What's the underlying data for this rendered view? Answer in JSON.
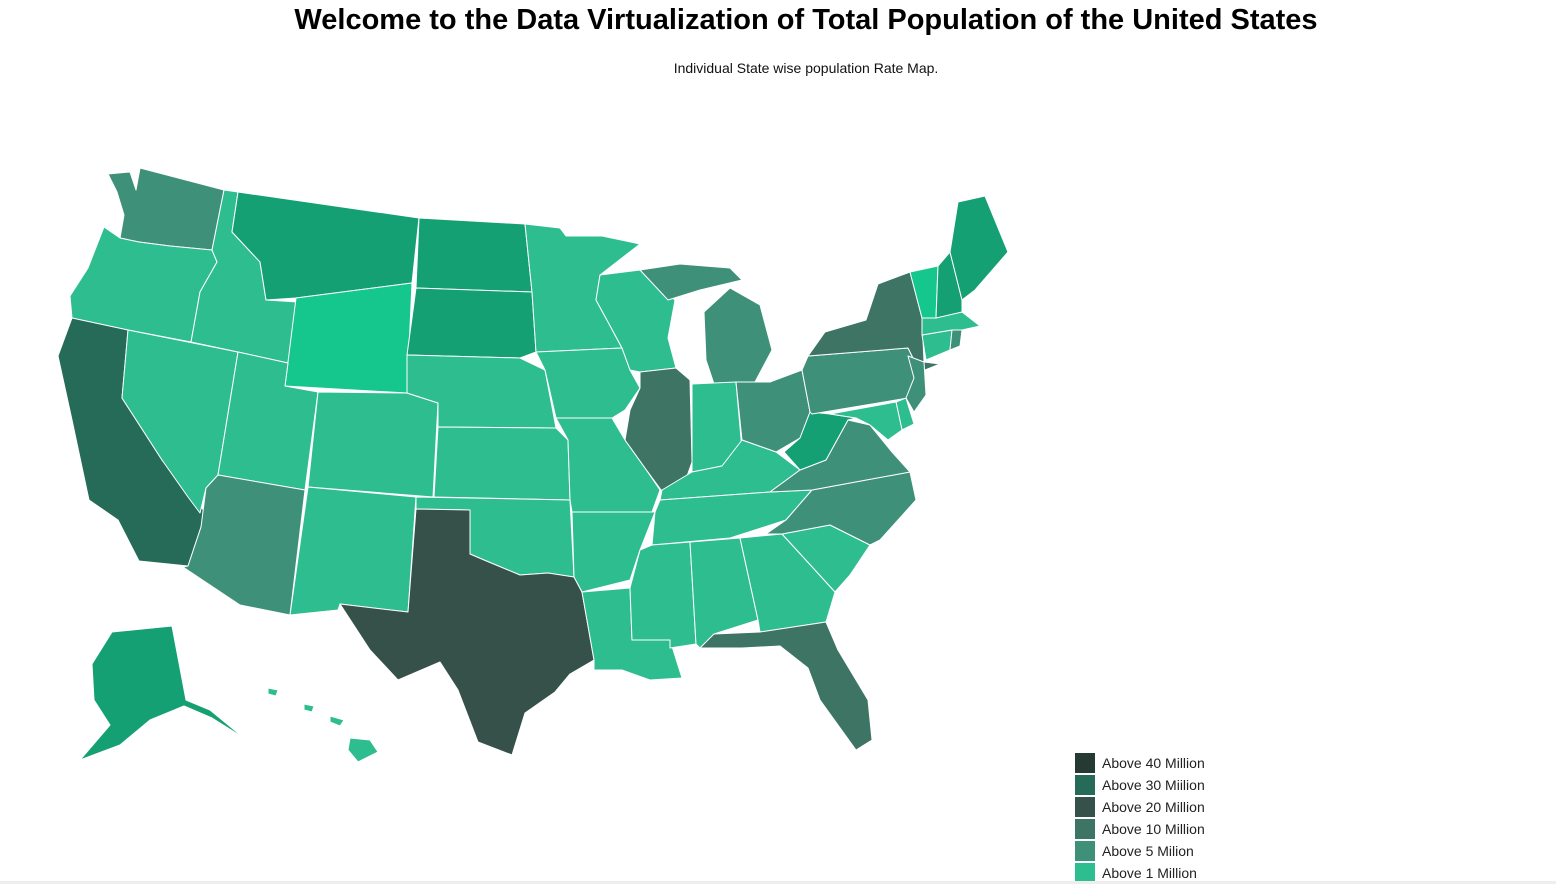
{
  "header": {
    "title": "Welcome to the Data Virtualization of Total Population of the United States",
    "subtitle": "Individual State wise population Rate Map."
  },
  "colors": {
    "above_40": "#253a32",
    "above_30": "#256b58",
    "above_20": "#35514a",
    "above_10": "#3d7464",
    "above_5": "#3f9079",
    "above_1": "#2ebd8f",
    "under_1": "#14a073",
    "lowest": "#18c18f",
    "bright": "#15c68d"
  },
  "legend": {
    "items": [
      {
        "label": "Above 40 Million",
        "color": "#253a32"
      },
      {
        "label": "Above 30 Miilion",
        "color": "#256b58"
      },
      {
        "label": "Above 20 Million",
        "color": "#35514a"
      },
      {
        "label": "Above 10 Million",
        "color": "#3d7464"
      },
      {
        "label": "Above 5 Milion",
        "color": "#3f9079"
      },
      {
        "label": "Above 1 Million",
        "color": "#2ebd8f"
      }
    ]
  },
  "states": [
    {
      "name": "Washington",
      "tier": "above_5"
    },
    {
      "name": "Oregon",
      "tier": "above_1"
    },
    {
      "name": "California",
      "tier": "above_30"
    },
    {
      "name": "Nevada",
      "tier": "above_1"
    },
    {
      "name": "Idaho",
      "tier": "above_1"
    },
    {
      "name": "Montana",
      "tier": "under_1"
    },
    {
      "name": "Wyoming",
      "tier": "bright"
    },
    {
      "name": "Utah",
      "tier": "above_1"
    },
    {
      "name": "Arizona",
      "tier": "above_5"
    },
    {
      "name": "Colorado",
      "tier": "above_1"
    },
    {
      "name": "New Mexico",
      "tier": "above_1"
    },
    {
      "name": "North Dakota",
      "tier": "under_1"
    },
    {
      "name": "South Dakota",
      "tier": "under_1"
    },
    {
      "name": "Nebraska",
      "tier": "above_1"
    },
    {
      "name": "Kansas",
      "tier": "above_1"
    },
    {
      "name": "Oklahoma",
      "tier": "above_1"
    },
    {
      "name": "Texas",
      "tier": "above_20"
    },
    {
      "name": "Minnesota",
      "tier": "above_1"
    },
    {
      "name": "Iowa",
      "tier": "above_1"
    },
    {
      "name": "Missouri",
      "tier": "above_1"
    },
    {
      "name": "Arkansas",
      "tier": "above_1"
    },
    {
      "name": "Louisiana",
      "tier": "above_1"
    },
    {
      "name": "Wisconsin",
      "tier": "above_1"
    },
    {
      "name": "Illinois",
      "tier": "above_10"
    },
    {
      "name": "Michigan",
      "tier": "above_5"
    },
    {
      "name": "Indiana",
      "tier": "above_1"
    },
    {
      "name": "Ohio",
      "tier": "above_5"
    },
    {
      "name": "Kentucky",
      "tier": "above_1"
    },
    {
      "name": "Tennessee",
      "tier": "above_1"
    },
    {
      "name": "Mississippi",
      "tier": "above_1"
    },
    {
      "name": "Alabama",
      "tier": "above_1"
    },
    {
      "name": "Georgia",
      "tier": "above_1"
    },
    {
      "name": "Florida",
      "tier": "above_10"
    },
    {
      "name": "South Carolina",
      "tier": "above_1"
    },
    {
      "name": "North Carolina",
      "tier": "above_5"
    },
    {
      "name": "Virginia",
      "tier": "above_5"
    },
    {
      "name": "West Virginia",
      "tier": "under_1"
    },
    {
      "name": "Pennsylvania",
      "tier": "above_5"
    },
    {
      "name": "New York",
      "tier": "above_10"
    },
    {
      "name": "New Jersey",
      "tier": "above_5"
    },
    {
      "name": "Delaware",
      "tier": "above_1"
    },
    {
      "name": "Maryland",
      "tier": "above_1"
    },
    {
      "name": "Connecticut",
      "tier": "above_1"
    },
    {
      "name": "Rhode Island",
      "tier": "above_5"
    },
    {
      "name": "Massachusetts",
      "tier": "above_1"
    },
    {
      "name": "Vermont",
      "tier": "bright"
    },
    {
      "name": "New Hampshire",
      "tier": "under_1"
    },
    {
      "name": "Maine",
      "tier": "under_1"
    },
    {
      "name": "Alaska",
      "tier": "under_1"
    },
    {
      "name": "Hawaii",
      "tier": "above_1"
    }
  ]
}
